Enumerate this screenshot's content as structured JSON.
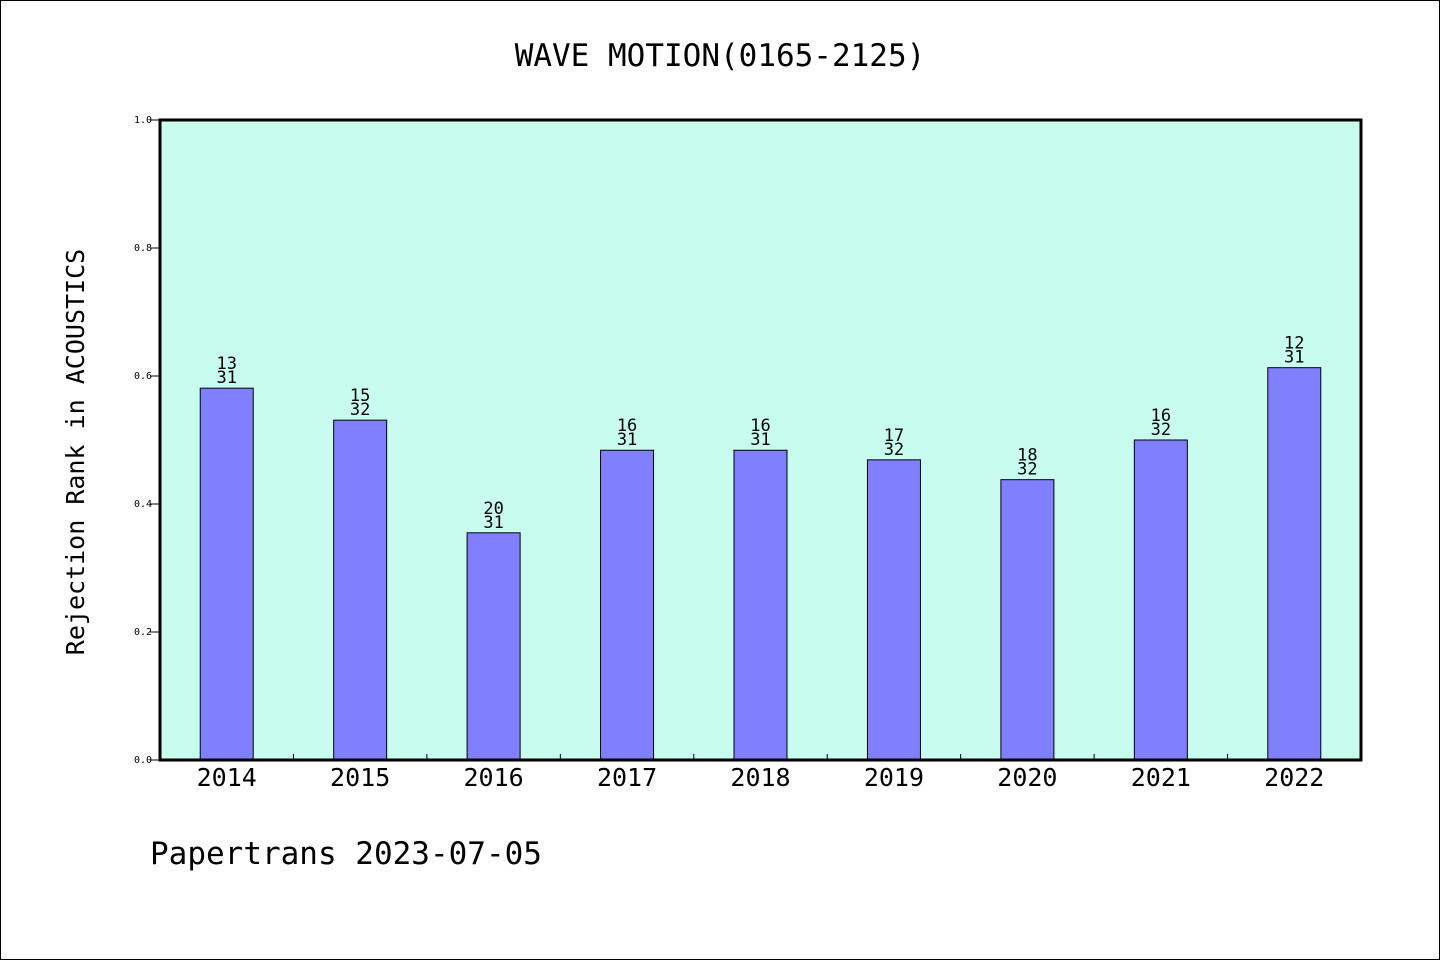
{
  "chart_data": {
    "type": "bar",
    "title": "WAVE MOTION(0165-2125)",
    "ylabel": "Rejection Rank in ACOUSTICS",
    "xlabel": "",
    "ylim": [
      0,
      1.0
    ],
    "yticks": [
      "0.0",
      "0.2",
      "0.4",
      "0.6",
      "0.8",
      "1.0"
    ],
    "categories": [
      "2014",
      "2015",
      "2016",
      "2017",
      "2018",
      "2019",
      "2020",
      "2021",
      "2022"
    ],
    "values": [
      0.581,
      0.531,
      0.355,
      0.484,
      0.484,
      0.469,
      0.438,
      0.5,
      0.613
    ],
    "label_top": [
      "13",
      "15",
      "20",
      "16",
      "16",
      "17",
      "18",
      "16",
      "12"
    ],
    "label_bottom": [
      "31",
      "32",
      "31",
      "31",
      "31",
      "32",
      "32",
      "32",
      "31"
    ],
    "grid": false,
    "colors": {
      "plot_bg": "#c8fcee",
      "bar": "#8080ff",
      "bar_edge": "#000000"
    }
  },
  "footer": {
    "text": "Papertrans 2023-07-05"
  }
}
